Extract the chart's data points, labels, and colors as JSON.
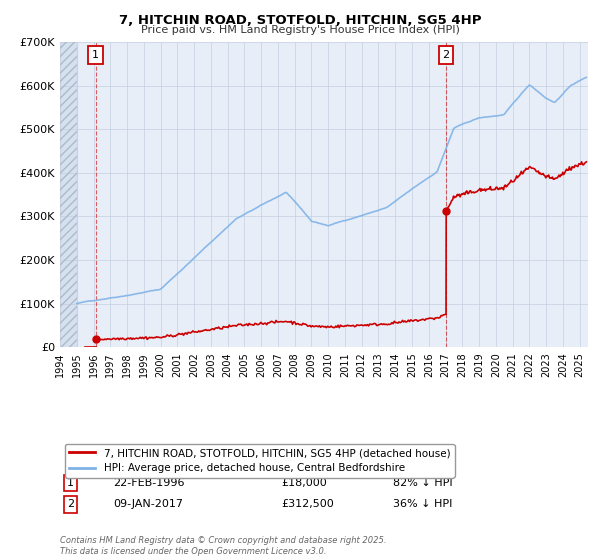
{
  "title": "7, HITCHIN ROAD, STOTFOLD, HITCHIN, SG5 4HP",
  "subtitle": "Price paid vs. HM Land Registry's House Price Index (HPI)",
  "bg_color": "#ffffff",
  "plot_bg_color": "#e8eef8",
  "hpi_color": "#7fb3e8",
  "price_color": "#cc0000",
  "marker1_date": 1996.13,
  "marker1_price": 18000,
  "marker2_date": 2017.03,
  "marker2_price": 312500,
  "legend_line1": "7, HITCHIN ROAD, STOTFOLD, HITCHIN, SG5 4HP (detached house)",
  "legend_line2": "HPI: Average price, detached house, Central Bedfordshire",
  "annotation1_date": "22-FEB-1996",
  "annotation1_price": "£18,000",
  "annotation1_hpi": "82% ↓ HPI",
  "annotation2_date": "09-JAN-2017",
  "annotation2_price": "£312,500",
  "annotation2_hpi": "36% ↓ HPI",
  "footer": "Contains HM Land Registry data © Crown copyright and database right 2025.\nThis data is licensed under the Open Government Licence v3.0.",
  "xlim": [
    1994,
    2025.5
  ],
  "ylim": [
    0,
    700000
  ],
  "yticks": [
    0,
    100000,
    200000,
    300000,
    400000,
    500000,
    600000,
    700000
  ],
  "ytick_labels": [
    "£0",
    "£100K",
    "£200K",
    "£300K",
    "£400K",
    "£500K",
    "£600K",
    "£700K"
  ]
}
